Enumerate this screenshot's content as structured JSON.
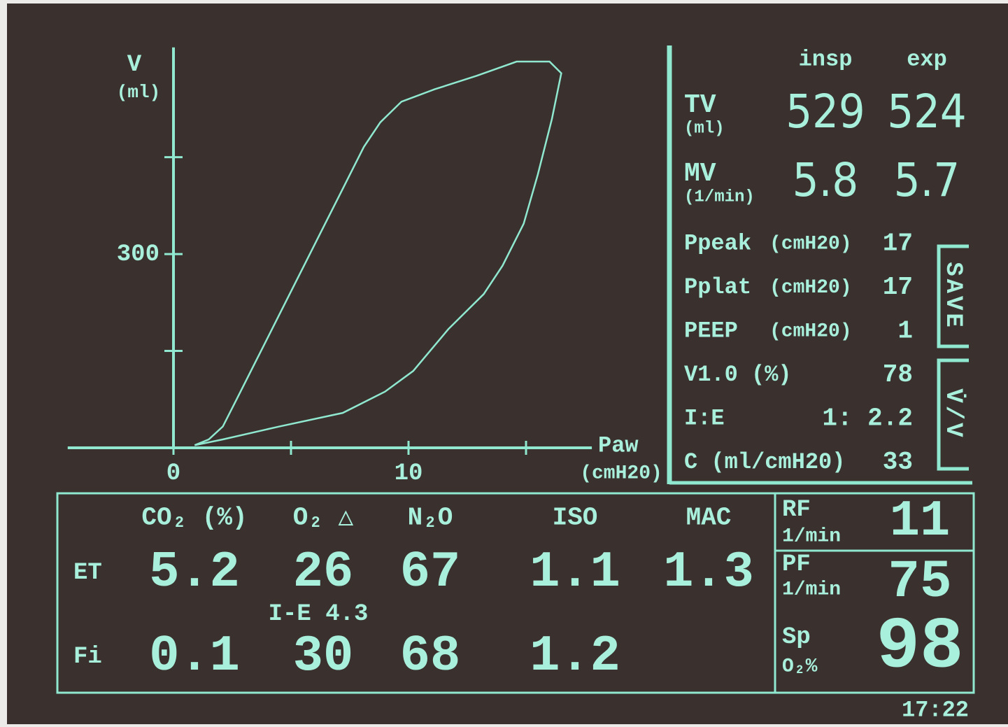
{
  "chart_data": {
    "type": "line",
    "y_label": "V",
    "y_unit": "(ml)",
    "x_label": "Paw",
    "x_unit": "(cmH20)",
    "x": [
      0.9,
      1.5,
      2.1,
      2.7,
      3.6,
      4.5,
      5.4,
      6.3,
      7.2,
      8.1,
      8.8,
      9.7,
      11.1,
      12.9,
      14.6,
      16.0,
      16.5,
      16.1,
      15.5,
      14.9,
      14.0,
      13.2,
      11.7,
      10.2,
      9.0,
      7.2,
      4.5,
      2.1,
      0.9
    ],
    "series": [
      {
        "color": "#8fe8cf",
        "values": [
          4,
          13,
          33,
          76,
          141,
          206,
          271,
          336,
          401,
          466,
          504,
          536,
          555,
          576,
          598,
          598,
          580,
          509,
          423,
          347,
          282,
          238,
          184,
          119,
          87,
          54,
          33,
          13,
          4
        ]
      }
    ],
    "xlim": [
      -4.5,
      17.8
    ],
    "ylim": [
      0,
      620
    ],
    "xticks": [
      0,
      {
        "value": 5,
        "label": null
      },
      10,
      {
        "value": 15,
        "label": null
      }
    ],
    "yticks": [
      {
        "value": 150,
        "label": null
      },
      300,
      {
        "value": 450,
        "label": null
      }
    ]
  },
  "ventilation": {
    "headers": [
      "insp",
      "exp"
    ],
    "rows": [
      {
        "label": "TV",
        "unit": "(ml)",
        "values": [
          529,
          524
        ]
      },
      {
        "label": "MV",
        "unit": "(1/min)",
        "values": [
          5.8,
          5.7
        ]
      }
    ]
  },
  "params": [
    {
      "label": "Ppeak",
      "unit": "(cmH20)",
      "value": 17
    },
    {
      "label": "Pplat",
      "unit": "(cmH20)",
      "value": 17
    },
    {
      "label": "PEEP",
      "unit": "(cmH20)",
      "value": 1
    },
    {
      "label": "V1.0 (%)",
      "value": 78
    },
    {
      "label": "I:E",
      "value": "1: 2.2"
    },
    {
      "label": "C (ml/cmH20)",
      "value": 33
    }
  ],
  "buttons": [
    "SAVE",
    "V̇/V"
  ],
  "gases": {
    "columns": [
      "CO₂ (%)",
      "O₂ △",
      "N₂O",
      "ISO",
      "MAC"
    ],
    "rows": [
      {
        "label": "ET",
        "values": [
          5.2,
          26,
          67,
          1.1,
          1.3
        ]
      },
      {
        "label": "Fi",
        "values": [
          0.1,
          30,
          68,
          1.2,
          null
        ]
      }
    ],
    "note": "I-E 4.3"
  },
  "vitals": [
    {
      "label": "RF",
      "unit": "1/min",
      "value": 11
    },
    {
      "label": "PF",
      "unit": "1/min",
      "value": 75
    },
    {
      "label": "Sp",
      "unit": "O₂%",
      "value": 98
    }
  ],
  "clock": "17:22"
}
